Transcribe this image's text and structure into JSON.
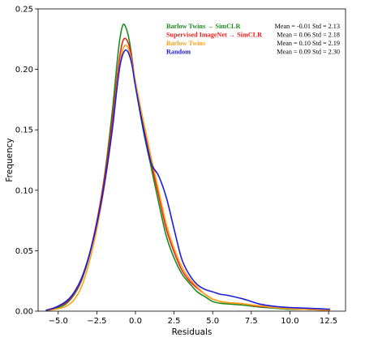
{
  "chart_data": {
    "type": "line",
    "xlabel": "Residuals",
    "ylabel": "Frequency",
    "xlim": [
      -6.3,
      13.6
    ],
    "ylim": [
      0,
      0.25
    ],
    "xticks": [
      "−5.0",
      "−2.5",
      "0.0",
      "2.5",
      "5.0",
      "7.5",
      "10.0",
      "12.5"
    ],
    "xtick_values": [
      -5.0,
      -2.5,
      0.0,
      2.5,
      5.0,
      7.5,
      10.0,
      12.5
    ],
    "yticks": [
      "0.00",
      "0.05",
      "0.10",
      "0.15",
      "0.20",
      "0.25"
    ],
    "ytick_values": [
      0.0,
      0.05,
      0.1,
      0.15,
      0.2,
      0.25
    ],
    "grid": false,
    "legend_position": "top-right",
    "series": [
      {
        "name": "Barlow Twins → SimCLR",
        "stats": "Mean = -0.01   Std = 2.13",
        "color": "#1a8c1a",
        "points": [
          [
            -5.8,
            0.0005
          ],
          [
            -5.2,
            0.002
          ],
          [
            -4.5,
            0.006
          ],
          [
            -4.0,
            0.013
          ],
          [
            -3.5,
            0.025
          ],
          [
            -3.0,
            0.045
          ],
          [
            -2.5,
            0.074
          ],
          [
            -2.0,
            0.112
          ],
          [
            -1.5,
            0.165
          ],
          [
            -1.2,
            0.204
          ],
          [
            -1.0,
            0.226
          ],
          [
            -0.8,
            0.237
          ],
          [
            -0.6,
            0.234
          ],
          [
            -0.4,
            0.224
          ],
          [
            -0.2,
            0.207
          ],
          [
            0.0,
            0.187
          ],
          [
            0.5,
            0.15
          ],
          [
            1.0,
            0.12
          ],
          [
            1.5,
            0.09
          ],
          [
            2.0,
            0.062
          ],
          [
            2.5,
            0.044
          ],
          [
            3.0,
            0.031
          ],
          [
            3.5,
            0.023
          ],
          [
            4.0,
            0.016
          ],
          [
            4.5,
            0.012
          ],
          [
            5.0,
            0.008
          ],
          [
            5.5,
            0.0065
          ],
          [
            6.0,
            0.006
          ],
          [
            7.0,
            0.005
          ],
          [
            8.0,
            0.0035
          ],
          [
            9.0,
            0.0025
          ],
          [
            10.0,
            0.0015
          ],
          [
            11.0,
            0.0015
          ],
          [
            12.0,
            0.001
          ],
          [
            12.6,
            0.0006
          ]
        ]
      },
      {
        "name": "Supervised ImageNet → SimCLR",
        "stats": "Mean = 0.06   Std = 2.18",
        "color": "#e8201e",
        "points": [
          [
            -5.8,
            0.0008
          ],
          [
            -5.2,
            0.003
          ],
          [
            -4.5,
            0.007
          ],
          [
            -4.0,
            0.014
          ],
          [
            -3.5,
            0.026
          ],
          [
            -3.0,
            0.046
          ],
          [
            -2.5,
            0.074
          ],
          [
            -2.0,
            0.11
          ],
          [
            -1.5,
            0.157
          ],
          [
            -1.2,
            0.192
          ],
          [
            -1.0,
            0.212
          ],
          [
            -0.8,
            0.224
          ],
          [
            -0.6,
            0.225
          ],
          [
            -0.4,
            0.219
          ],
          [
            -0.2,
            0.206
          ],
          [
            0.0,
            0.189
          ],
          [
            0.5,
            0.155
          ],
          [
            1.0,
            0.124
          ],
          [
            1.5,
            0.096
          ],
          [
            2.0,
            0.068
          ],
          [
            2.5,
            0.049
          ],
          [
            3.0,
            0.034
          ],
          [
            3.5,
            0.025
          ],
          [
            4.0,
            0.019
          ],
          [
            4.5,
            0.014
          ],
          [
            5.0,
            0.01
          ],
          [
            5.5,
            0.008
          ],
          [
            6.0,
            0.007
          ],
          [
            7.0,
            0.006
          ],
          [
            8.0,
            0.004
          ],
          [
            9.0,
            0.003
          ],
          [
            10.0,
            0.002
          ],
          [
            11.0,
            0.0015
          ],
          [
            12.0,
            0.001
          ],
          [
            12.6,
            0.0006
          ]
        ]
      },
      {
        "name": "Barlow Twins",
        "stats": "Mean = 0.10   Std = 2.19",
        "color": "#ffa21a",
        "points": [
          [
            -5.8,
            0.0003
          ],
          [
            -5.2,
            0.0015
          ],
          [
            -4.5,
            0.004
          ],
          [
            -4.0,
            0.009
          ],
          [
            -3.5,
            0.02
          ],
          [
            -3.0,
            0.04
          ],
          [
            -2.5,
            0.068
          ],
          [
            -2.0,
            0.104
          ],
          [
            -1.5,
            0.15
          ],
          [
            -1.2,
            0.186
          ],
          [
            -1.0,
            0.205
          ],
          [
            -0.8,
            0.217
          ],
          [
            -0.6,
            0.22
          ],
          [
            -0.4,
            0.215
          ],
          [
            -0.2,
            0.204
          ],
          [
            0.0,
            0.19
          ],
          [
            0.5,
            0.158
          ],
          [
            1.0,
            0.128
          ],
          [
            1.5,
            0.1
          ],
          [
            2.0,
            0.072
          ],
          [
            2.5,
            0.052
          ],
          [
            3.0,
            0.037
          ],
          [
            3.5,
            0.027
          ],
          [
            4.0,
            0.02
          ],
          [
            4.5,
            0.014
          ],
          [
            5.0,
            0.01
          ],
          [
            5.5,
            0.008
          ],
          [
            6.0,
            0.007
          ],
          [
            7.0,
            0.006
          ],
          [
            8.0,
            0.0045
          ],
          [
            9.0,
            0.003
          ],
          [
            10.0,
            0.002
          ],
          [
            11.0,
            0.0015
          ],
          [
            12.0,
            0.0012
          ],
          [
            12.6,
            0.0006
          ]
        ]
      },
      {
        "name": "Random",
        "stats": "Mean = 0.09   Std = 2.30",
        "color": "#1c1cdb",
        "points": [
          [
            -5.8,
            0.0005
          ],
          [
            -5.2,
            0.003
          ],
          [
            -4.5,
            0.008
          ],
          [
            -4.0,
            0.015
          ],
          [
            -3.5,
            0.027
          ],
          [
            -3.0,
            0.046
          ],
          [
            -2.5,
            0.072
          ],
          [
            -2.0,
            0.106
          ],
          [
            -1.5,
            0.15
          ],
          [
            -1.2,
            0.184
          ],
          [
            -1.0,
            0.203
          ],
          [
            -0.8,
            0.213
          ],
          [
            -0.6,
            0.216
          ],
          [
            -0.4,
            0.212
          ],
          [
            -0.2,
            0.202
          ],
          [
            0.0,
            0.186
          ],
          [
            0.5,
            0.152
          ],
          [
            1.0,
            0.123
          ],
          [
            1.5,
            0.112
          ],
          [
            2.0,
            0.094
          ],
          [
            2.5,
            0.068
          ],
          [
            3.0,
            0.043
          ],
          [
            3.5,
            0.03
          ],
          [
            4.0,
            0.022
          ],
          [
            4.5,
            0.018
          ],
          [
            5.0,
            0.016
          ],
          [
            5.5,
            0.014
          ],
          [
            6.0,
            0.013
          ],
          [
            7.0,
            0.01
          ],
          [
            8.0,
            0.006
          ],
          [
            9.0,
            0.004
          ],
          [
            10.0,
            0.003
          ],
          [
            11.0,
            0.0025
          ],
          [
            12.0,
            0.002
          ],
          [
            12.6,
            0.0015
          ]
        ]
      }
    ]
  }
}
